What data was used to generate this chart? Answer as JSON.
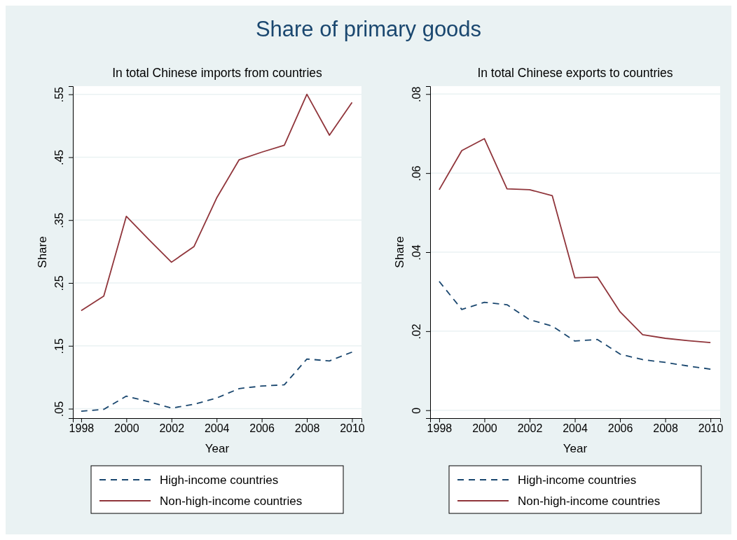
{
  "chart_data": [
    {
      "type": "line",
      "title": "In total Chinese imports from countries",
      "xlabel": "Year",
      "ylabel": "Share",
      "annotations": [
        "Share of primary goods"
      ],
      "x": [
        1998,
        1999,
        2000,
        2001,
        2002,
        2003,
        2004,
        2005,
        2006,
        2007,
        2008,
        2009,
        2010
      ],
      "xlim": [
        1997.63,
        2010.42
      ],
      "xticks": [
        1998,
        2000,
        2002,
        2004,
        2006,
        2008,
        2010
      ],
      "ylim": [
        0.035,
        0.563
      ],
      "yticks": [
        {
          "value": 0.05,
          "label": ".05"
        },
        {
          "value": 0.15,
          "label": ".15"
        },
        {
          "value": 0.25,
          "label": ".25"
        },
        {
          "value": 0.35,
          "label": ".35"
        },
        {
          "value": 0.45,
          "label": ".45"
        },
        {
          "value": 0.55,
          "label": ".55"
        }
      ],
      "grid": "y",
      "legend": "bottom",
      "marker": "none",
      "series": [
        {
          "name": "High-income countries",
          "color": "#1a476f",
          "line_style": "dashed",
          "values": [
            0.046,
            0.049,
            0.07,
            0.061,
            0.051,
            0.057,
            0.067,
            0.082,
            0.086,
            0.088,
            0.129,
            0.126,
            0.14
          ]
        },
        {
          "name": "Non-high-income countries",
          "color": "#90353b",
          "line_style": "solid",
          "values": [
            0.206,
            0.229,
            0.356,
            0.319,
            0.283,
            0.308,
            0.385,
            0.446,
            0.458,
            0.469,
            0.55,
            0.485,
            0.537
          ]
        }
      ]
    },
    {
      "type": "line",
      "title": "In total Chinese exports to countries",
      "xlabel": "Year",
      "ylabel": "Share",
      "x": [
        1998,
        1999,
        2000,
        2001,
        2002,
        2003,
        2004,
        2005,
        2006,
        2007,
        2008,
        2009,
        2010
      ],
      "xlim": [
        1997.6,
        2010.43
      ],
      "xticks": [
        1998,
        2000,
        2002,
        2004,
        2006,
        2008,
        2010
      ],
      "ylim": [
        -0.002,
        0.082
      ],
      "yticks": [
        0,
        {
          "value": 0.02,
          "label": ".02"
        },
        {
          "value": 0.04,
          "label": ".04"
        },
        {
          "value": 0.06,
          "label": ".06"
        },
        {
          "value": 0.08,
          "label": ".08"
        }
      ],
      "grid": "y",
      "legend": "bottom",
      "marker": "none",
      "series": [
        {
          "name": "High-income countries",
          "color": "#1a476f",
          "line_style": "dashed",
          "values": [
            0.0326,
            0.0255,
            0.0273,
            0.0267,
            0.0229,
            0.0213,
            0.0175,
            0.0179,
            0.0142,
            0.0128,
            0.0121,
            0.0112,
            0.0104
          ]
        },
        {
          "name": "Non-high-income countries",
          "color": "#90353b",
          "line_style": "solid",
          "values": [
            0.0558,
            0.0657,
            0.0687,
            0.056,
            0.0558,
            0.0543,
            0.0335,
            0.0337,
            0.0249,
            0.0191,
            0.0182,
            0.0176,
            0.0171
          ]
        }
      ]
    }
  ]
}
